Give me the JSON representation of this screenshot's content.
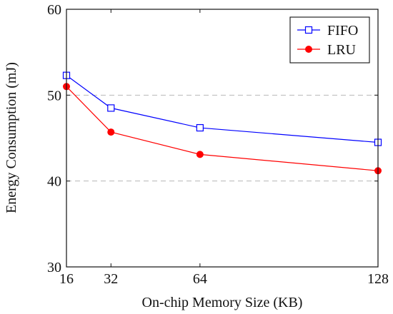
{
  "chart_data": {
    "type": "line",
    "title": "",
    "xlabel": "On-chip Memory Size (KB)",
    "ylabel": "Energy Consumption (mJ)",
    "x": [
      16,
      32,
      64,
      128
    ],
    "xlim": [
      16,
      128
    ],
    "xticks": [
      16,
      32,
      64,
      128
    ],
    "ylim": [
      30,
      60
    ],
    "yticks": [
      30,
      40,
      50,
      60
    ],
    "grid": "horizontal dashed at 40 and 50",
    "legend_position": "top-right",
    "series": [
      {
        "name": "FIFO",
        "values": [
          52.3,
          48.5,
          46.2,
          44.5
        ],
        "color": "#0000ff",
        "marker": "open-square"
      },
      {
        "name": "LRU",
        "values": [
          51.0,
          45.7,
          43.1,
          41.2
        ],
        "color": "#ff0000",
        "marker": "filled-circle"
      }
    ]
  }
}
